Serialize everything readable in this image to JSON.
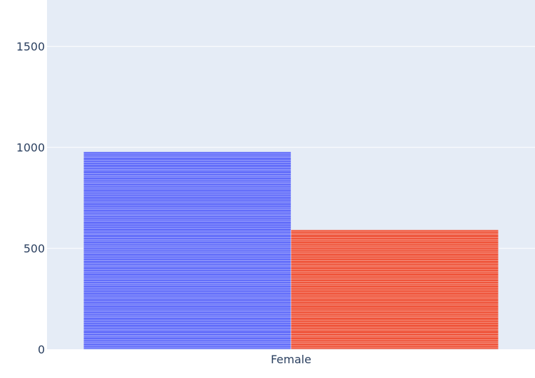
{
  "chart_data": {
    "type": "bar",
    "categories": [
      "Female"
    ],
    "series": [
      {
        "color": "#636efa",
        "values": [
          978
        ]
      },
      {
        "color": "#ef553b",
        "values": [
          592
        ]
      }
    ],
    "yticks": [
      0,
      500,
      1000,
      1500
    ],
    "ylim": [
      0,
      1730
    ],
    "grid": true,
    "plot_background": "#e5ecf6",
    "gridline_color": "#ffffff"
  }
}
